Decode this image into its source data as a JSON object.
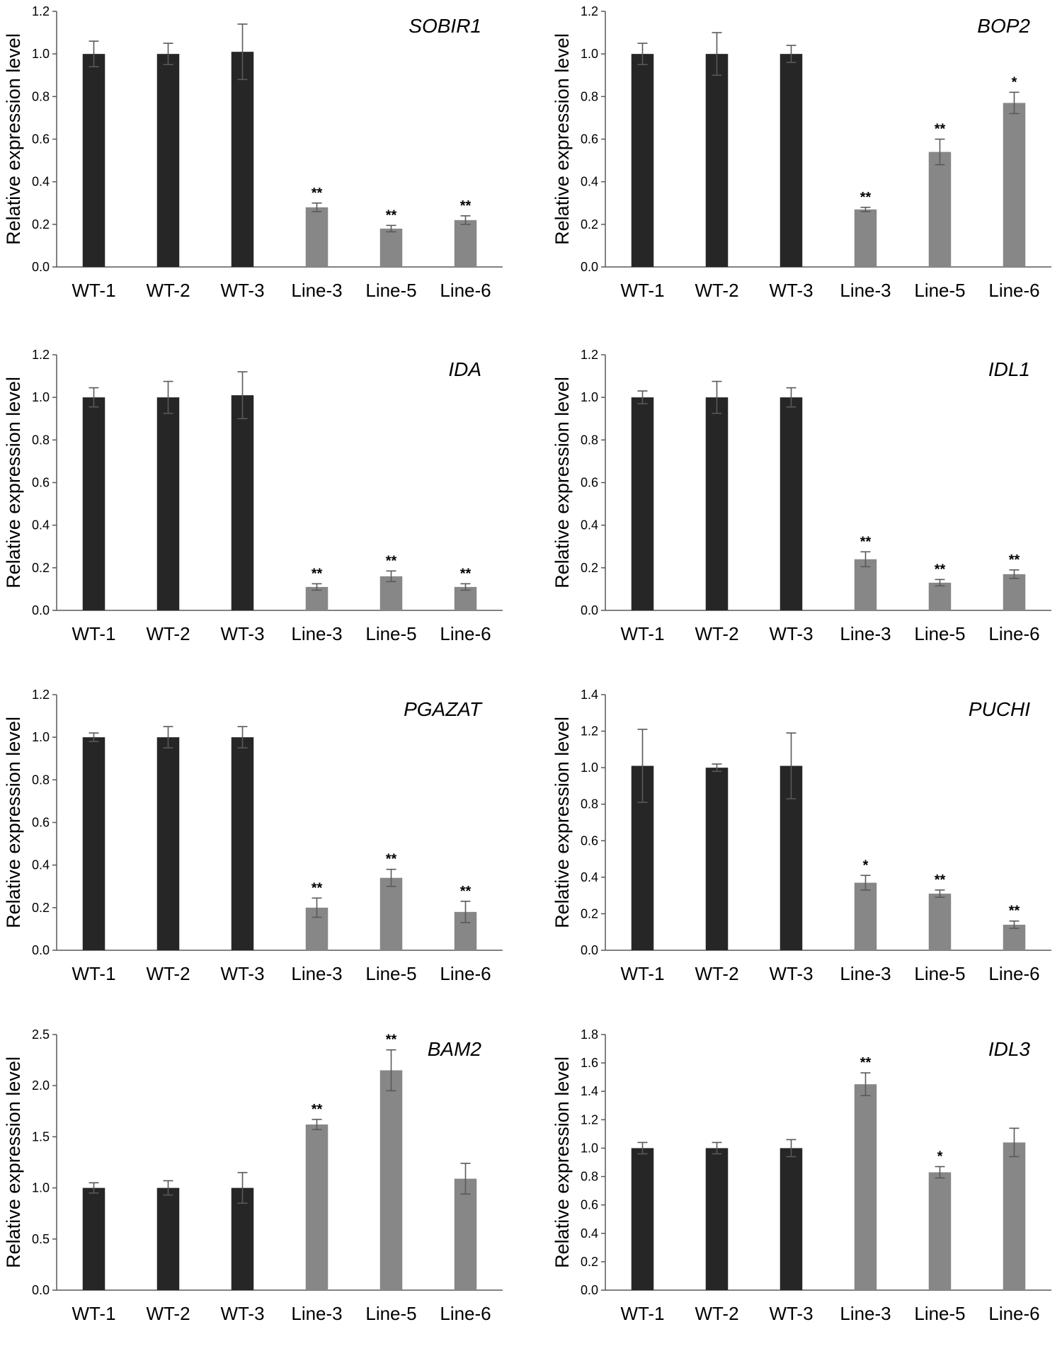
{
  "colors": {
    "wt": "#262626",
    "line": "#878787",
    "axis": "#595959",
    "errorbar": "#595959"
  },
  "chart_data": [
    {
      "type": "bar",
      "title": "SOBIR1",
      "ylabel": "Relative expression level",
      "categories": [
        "WT-1",
        "WT-2",
        "WT-3",
        "Line-3",
        "Line-5",
        "Line-6"
      ],
      "values": [
        1.0,
        1.0,
        1.01,
        0.28,
        0.18,
        0.22
      ],
      "errors": [
        0.06,
        0.05,
        0.13,
        0.02,
        0.015,
        0.02
      ],
      "significance": [
        "",
        "",
        "",
        "**",
        "**",
        "**"
      ],
      "ylim": [
        0,
        1.2
      ],
      "yticks": [
        "0.0",
        "0.2",
        "0.4",
        "0.6",
        "0.8",
        "1.0",
        "1.2"
      ]
    },
    {
      "type": "bar",
      "title": "BOP2",
      "ylabel": "Relative expression level",
      "categories": [
        "WT-1",
        "WT-2",
        "WT-3",
        "Line-3",
        "Line-5",
        "Line-6"
      ],
      "values": [
        1.0,
        1.0,
        1.0,
        0.27,
        0.54,
        0.77
      ],
      "errors": [
        0.05,
        0.1,
        0.04,
        0.01,
        0.06,
        0.05
      ],
      "significance": [
        "",
        "",
        "",
        "**",
        "**",
        "*"
      ],
      "ylim": [
        0,
        1.2
      ],
      "yticks": [
        "0.0",
        "0.2",
        "0.4",
        "0.6",
        "0.8",
        "1.0",
        "1.2"
      ]
    },
    {
      "type": "bar",
      "title": "IDA",
      "ylabel": "Relative expression level",
      "categories": [
        "WT-1",
        "WT-2",
        "WT-3",
        "Line-3",
        "Line-5",
        "Line-6"
      ],
      "values": [
        1.0,
        1.0,
        1.01,
        0.11,
        0.16,
        0.11
      ],
      "errors": [
        0.045,
        0.075,
        0.11,
        0.015,
        0.025,
        0.015
      ],
      "significance": [
        "",
        "",
        "",
        "**",
        "**",
        "**"
      ],
      "ylim": [
        0,
        1.2
      ],
      "yticks": [
        "0.0",
        "0.2",
        "0.4",
        "0.6",
        "0.8",
        "1.0",
        "1.2"
      ]
    },
    {
      "type": "bar",
      "title": "IDL1",
      "ylabel": "Relative expression level",
      "categories": [
        "WT-1",
        "WT-2",
        "WT-3",
        "Line-3",
        "Line-5",
        "Line-6"
      ],
      "values": [
        1.0,
        1.0,
        1.0,
        0.24,
        0.13,
        0.17
      ],
      "errors": [
        0.03,
        0.075,
        0.045,
        0.035,
        0.015,
        0.02
      ],
      "significance": [
        "",
        "",
        "",
        "**",
        "**",
        "**"
      ],
      "ylim": [
        0,
        1.2
      ],
      "yticks": [
        "0.0",
        "0.2",
        "0.4",
        "0.6",
        "0.8",
        "1.0",
        "1.2"
      ]
    },
    {
      "type": "bar",
      "title": "PGAZAT",
      "ylabel": "Relative expression level",
      "categories": [
        "WT-1",
        "WT-2",
        "WT-3",
        "Line-3",
        "Line-5",
        "Line-6"
      ],
      "values": [
        1.0,
        1.0,
        1.0,
        0.2,
        0.34,
        0.18
      ],
      "errors": [
        0.02,
        0.05,
        0.05,
        0.045,
        0.04,
        0.05
      ],
      "significance": [
        "",
        "",
        "",
        "**",
        "**",
        "**"
      ],
      "ylim": [
        0,
        1.2
      ],
      "yticks": [
        "0.0",
        "0.2",
        "0.4",
        "0.6",
        "0.8",
        "1.0",
        "1.2"
      ]
    },
    {
      "type": "bar",
      "title": "PUCHI",
      "ylabel": "Relative expression level",
      "categories": [
        "WT-1",
        "WT-2",
        "WT-3",
        "Line-3",
        "Line-5",
        "Line-6"
      ],
      "values": [
        1.01,
        1.0,
        1.01,
        0.37,
        0.31,
        0.14
      ],
      "errors": [
        0.2,
        0.02,
        0.18,
        0.04,
        0.02,
        0.02
      ],
      "significance": [
        "",
        "",
        "",
        "*",
        "**",
        "**"
      ],
      "ylim": [
        0,
        1.4
      ],
      "yticks": [
        "0.0",
        "0.2",
        "0.4",
        "0.6",
        "0.8",
        "1.0",
        "1.2",
        "1.4"
      ]
    },
    {
      "type": "bar",
      "title": "BAM2",
      "ylabel": "Relative expression level",
      "categories": [
        "WT-1",
        "WT-2",
        "WT-3",
        "Line-3",
        "Line-5",
        "Line-6"
      ],
      "values": [
        1.0,
        1.0,
        1.0,
        1.62,
        2.15,
        1.09
      ],
      "errors": [
        0.05,
        0.07,
        0.15,
        0.05,
        0.2,
        0.15
      ],
      "significance": [
        "",
        "",
        "",
        "**",
        "**",
        ""
      ],
      "ylim": [
        0,
        2.5
      ],
      "yticks": [
        "0.0",
        "0.5",
        "1.0",
        "1.5",
        "2.0",
        "2.5"
      ]
    },
    {
      "type": "bar",
      "title": "IDL3",
      "ylabel": "Relative expression level",
      "categories": [
        "WT-1",
        "WT-2",
        "WT-3",
        "Line-3",
        "Line-5",
        "Line-6"
      ],
      "values": [
        1.0,
        1.0,
        1.0,
        1.45,
        0.83,
        1.04
      ],
      "errors": [
        0.04,
        0.04,
        0.06,
        0.08,
        0.04,
        0.1
      ],
      "significance": [
        "",
        "",
        "",
        "**",
        "*",
        ""
      ],
      "ylim": [
        0,
        1.8
      ],
      "yticks": [
        "0.0",
        "0.2",
        "0.4",
        "0.6",
        "0.8",
        "1.0",
        "1.2",
        "1.4",
        "1.6",
        "1.8"
      ]
    }
  ]
}
